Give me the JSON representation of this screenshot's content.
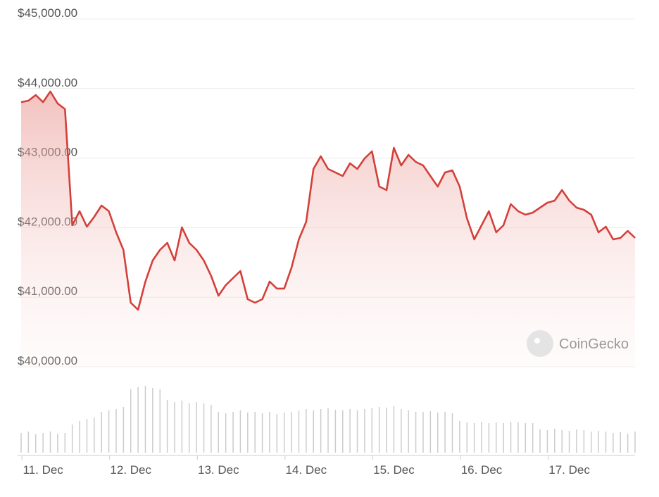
{
  "chart_data": {
    "type": "line",
    "watermark": "CoinGecko",
    "categories": [
      null,
      null,
      null,
      "11. Dec",
      null,
      null,
      null,
      null,
      null,
      null,
      null,
      null,
      null,
      null,
      null,
      "12. Dec",
      null,
      null,
      null,
      null,
      null,
      null,
      null,
      null,
      null,
      null,
      null,
      "13. Dec",
      null,
      null,
      null,
      null,
      null,
      null,
      null,
      null,
      null,
      null,
      null,
      "14. Dec",
      null,
      null,
      null,
      null,
      null,
      null,
      null,
      null,
      null,
      null,
      null,
      "15. Dec",
      null,
      null,
      null,
      null,
      null,
      null,
      null,
      null,
      null,
      null,
      null,
      "16. Dec",
      null,
      null,
      null,
      null,
      null,
      null,
      null,
      null,
      null,
      null,
      null,
      "17. Dec",
      null,
      null,
      null,
      null,
      null,
      null,
      null,
      null,
      null
    ],
    "series": [
      {
        "color": "#d3403a",
        "values": [
          43805,
          43826,
          43907,
          43805,
          43957,
          43785,
          43704,
          42034,
          42237,
          42014,
          42156,
          42318,
          42237,
          41933,
          41680,
          40921,
          40820,
          41225,
          41528,
          41680,
          41781,
          41528,
          42004,
          41781,
          41680,
          41528,
          41306,
          41022,
          41174,
          41275,
          41377,
          40972,
          40921,
          40972,
          41225,
          41124,
          41124,
          41427,
          41832,
          42085,
          42844,
          43026,
          42844,
          42794,
          42743,
          42925,
          42844,
          42996,
          43097,
          42591,
          42540,
          43148,
          42895,
          43047,
          42945,
          42895,
          42743,
          42591,
          42794,
          42824,
          42591,
          42136,
          41832,
          42034,
          42237,
          41933,
          42034,
          42338,
          42237,
          42186,
          42217,
          42287,
          42358,
          42389,
          42540,
          42389,
          42287,
          42257,
          42186,
          41933,
          42014,
          41832,
          41852,
          41953,
          41852
        ]
      },
      {
        "color": "#cccccc",
        "axis": "y2",
        "values": [
          28,
          30,
          26,
          28,
          30,
          27,
          28,
          40,
          45,
          48,
          50,
          58,
          60,
          62,
          65,
          90,
          93,
          95,
          92,
          90,
          75,
          72,
          74,
          70,
          72,
          70,
          68,
          58,
          56,
          58,
          60,
          57,
          58,
          56,
          58,
          55,
          57,
          58,
          60,
          62,
          60,
          62,
          63,
          61,
          60,
          62,
          60,
          62,
          63,
          65,
          64,
          66,
          62,
          60,
          58,
          58,
          59,
          57,
          58,
          56,
          45,
          43,
          42,
          44,
          42,
          43,
          42,
          44,
          43,
          42,
          42,
          33,
          32,
          34,
          32,
          31,
          33,
          32,
          30,
          31,
          30,
          28,
          29,
          27,
          30
        ]
      }
    ],
    "ylim": [
      40000,
      45000
    ],
    "yticks": [
      {
        "value": 40000,
        "label": "$40,000.00"
      },
      {
        "value": 41000,
        "label": "$41,000.00"
      },
      {
        "value": 42000,
        "label": "$42,000.00"
      },
      {
        "value": 43000,
        "label": "$43,000.00"
      },
      {
        "value": 44000,
        "label": "$44,000.00"
      },
      {
        "value": 45000,
        "label": "$45,000.00"
      }
    ],
    "y2lim": [
      0,
      100
    ],
    "grid": true
  }
}
